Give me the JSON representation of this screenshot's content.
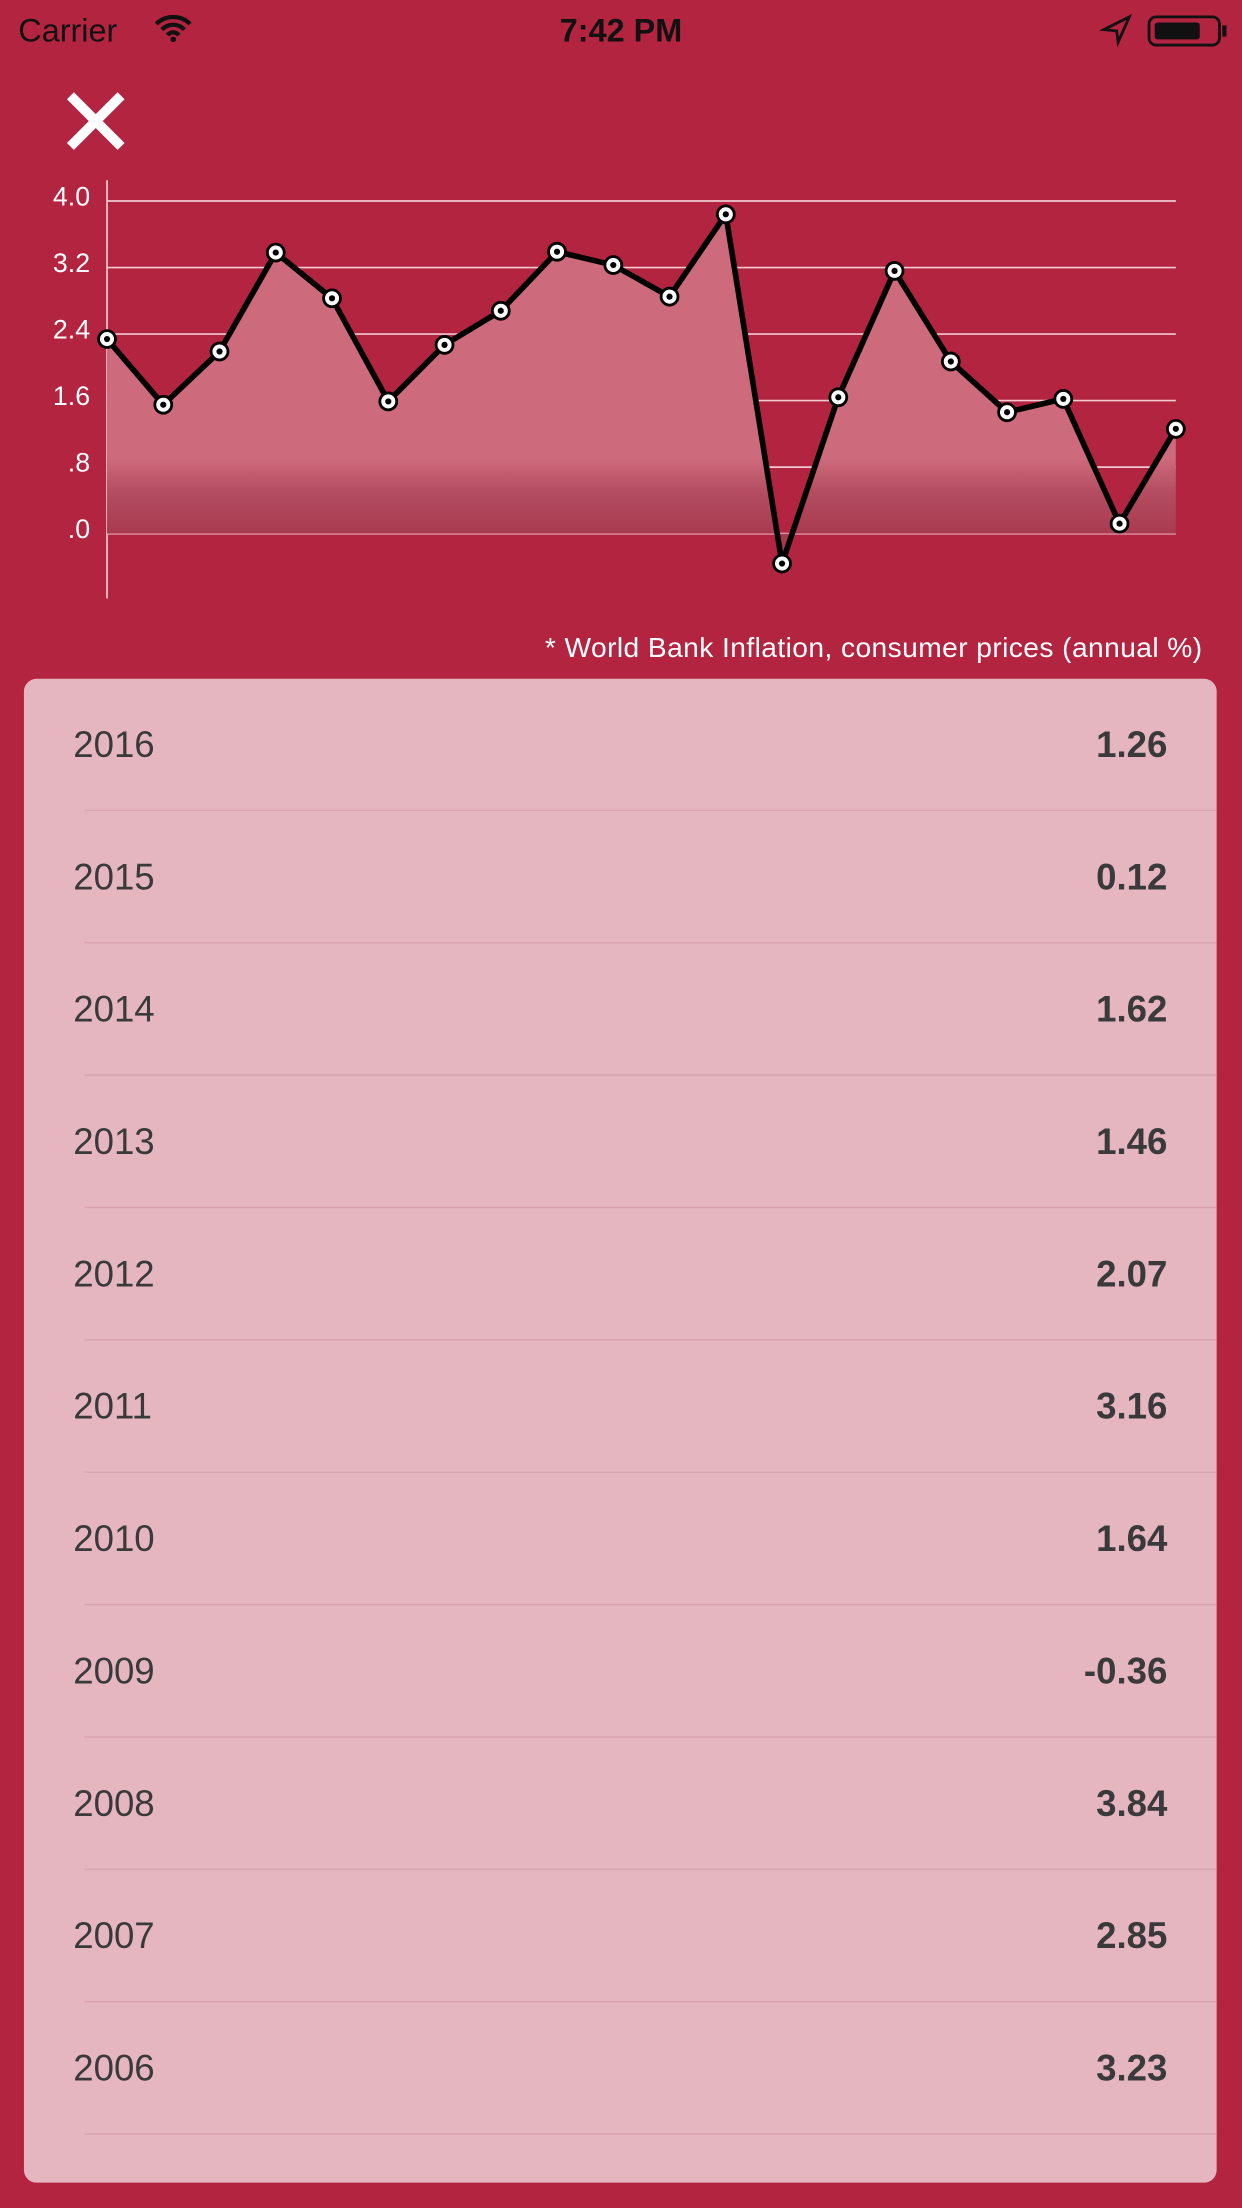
{
  "status": {
    "carrier": "Carrier",
    "time": "7:42 PM"
  },
  "chart_data": {
    "type": "line",
    "values": [
      2.34,
      1.55,
      2.19,
      3.38,
      2.83,
      1.59,
      2.27,
      2.68,
      3.39,
      3.23,
      2.85,
      3.84,
      -0.36,
      1.64,
      3.16,
      2.07,
      1.46,
      1.62,
      0.12,
      1.26
    ],
    "color": "#000000",
    "ylim": [
      -0.78,
      4.25
    ],
    "yticks": [
      {
        "value": 0,
        "label": ".0"
      },
      {
        "value": 0.8,
        "label": ".8"
      },
      {
        "value": 1.6,
        "label": "1.6"
      },
      {
        "value": 2.4,
        "label": "2.4"
      },
      {
        "value": 3.2,
        "label": "3.2"
      },
      {
        "value": 4,
        "label": "4.0"
      }
    ],
    "grid": true
  },
  "note": "* World Bank Inflation, consumer prices (annual %)",
  "table": {
    "rows": [
      [
        "2016",
        "1.26"
      ],
      [
        "2015",
        "0.12"
      ],
      [
        "2014",
        "1.62"
      ],
      [
        "2013",
        "1.46"
      ],
      [
        "2012",
        "2.07"
      ],
      [
        "2011",
        "3.16"
      ],
      [
        "2010",
        "1.64"
      ],
      [
        "2009",
        "-0.36"
      ],
      [
        "2008",
        "3.84"
      ],
      [
        "2007",
        "2.85"
      ],
      [
        "2006",
        "3.23"
      ]
    ]
  }
}
